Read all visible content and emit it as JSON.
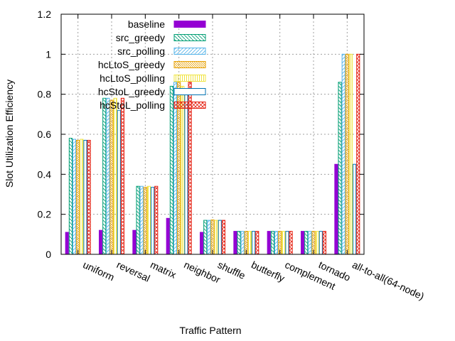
{
  "chart_data": {
    "type": "bar",
    "title": "",
    "xlabel": "Traffic Pattern",
    "ylabel": "Slot Utilization Efficiency",
    "ylim": [
      0,
      1.2
    ],
    "yticks": [
      "0",
      "0.2",
      "0.4",
      "0.6",
      "0.8",
      "1",
      "1.2"
    ],
    "grid": true,
    "legend_position": "top-left",
    "categories": [
      "uniform",
      "reversal",
      "matrix",
      "neighbor",
      "shuffle",
      "butterfly",
      "complement",
      "tornado",
      "all-to-all(64-node)"
    ],
    "series": [
      {
        "name": "baseline",
        "color": "#9400d3",
        "pattern": "solid",
        "values": [
          0.11,
          0.12,
          0.12,
          0.18,
          0.11,
          0.115,
          0.115,
          0.115,
          0.45
        ]
      },
      {
        "name": "src_greedy",
        "color": "#009e73",
        "pattern": "diag-back",
        "values": [
          0.58,
          0.78,
          0.34,
          0.84,
          0.17,
          0.115,
          0.115,
          0.115,
          0.86
        ]
      },
      {
        "name": "src_polling",
        "color": "#56b4e9",
        "pattern": "diag-fwd",
        "values": [
          0.575,
          0.78,
          0.34,
          0.86,
          0.17,
          0.115,
          0.115,
          0.115,
          1.0
        ]
      },
      {
        "name": "hcLtoS_greedy",
        "color": "#e69f00",
        "pattern": "diag-back-dense",
        "values": [
          0.57,
          0.77,
          0.335,
          0.86,
          0.172,
          0.115,
          0.115,
          0.115,
          1.0
        ]
      },
      {
        "name": "hcLtoS_polling",
        "color": "#f0e442",
        "pattern": "vertical",
        "values": [
          0.575,
          0.78,
          0.34,
          0.84,
          0.17,
          0.115,
          0.115,
          0.115,
          1.0
        ]
      },
      {
        "name": "hcStoL_greedy",
        "color": "#0072b2",
        "pattern": "hollow",
        "values": [
          0.57,
          0.72,
          0.335,
          0.82,
          0.17,
          0.115,
          0.115,
          0.115,
          0.45
        ]
      },
      {
        "name": "hcStoL_polling",
        "color": "#e51e10",
        "pattern": "cross",
        "values": [
          0.57,
          0.78,
          0.34,
          0.86,
          0.17,
          0.115,
          0.115,
          0.115,
          1.0
        ]
      }
    ]
  }
}
